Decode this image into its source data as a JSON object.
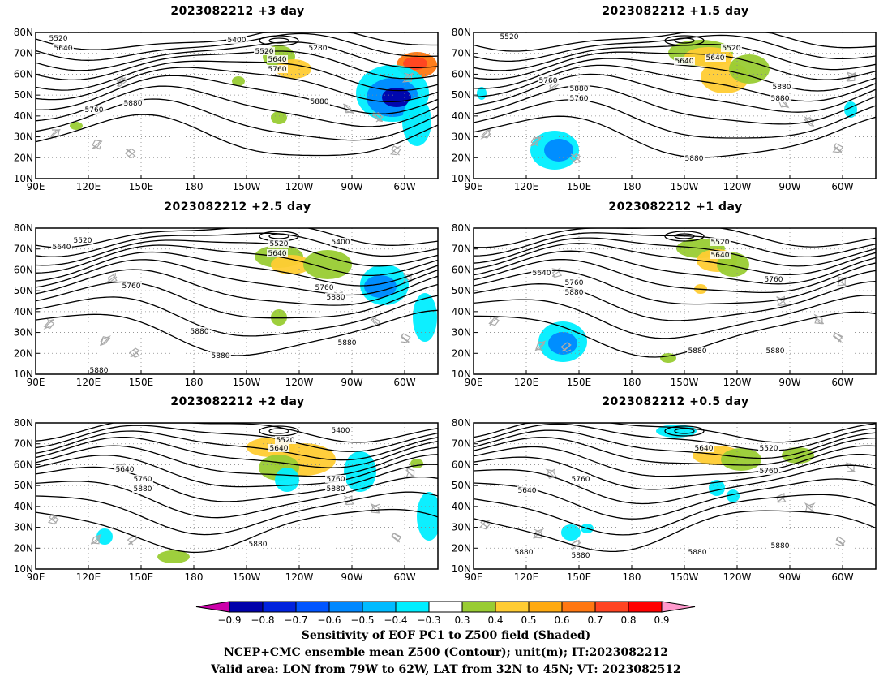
{
  "panels": [
    {
      "title": "2023082212 +3 day",
      "contour_labels": [
        "5520",
        "5640",
        "5400",
        "5280",
        "5520",
        "5640",
        "5760",
        "5760",
        "5880",
        "5880"
      ]
    },
    {
      "title": "2023082212 +1.5 day",
      "contour_labels": [
        "5520",
        "5520",
        "5640",
        "5640",
        "5760",
        "5880",
        "5760",
        "5880",
        "5880",
        "5880"
      ]
    },
    {
      "title": "2023082212 +2.5 day",
      "contour_labels": [
        "5520",
        "5640",
        "5520",
        "5400",
        "5640",
        "5760",
        "5760",
        "5880",
        "5880",
        "5880",
        "5880",
        "5880"
      ]
    },
    {
      "title": "2023082212 +1 day",
      "contour_labels": [
        "5520",
        "5640",
        "5640",
        "5760",
        "5880",
        "5760",
        "5880",
        "5880"
      ]
    },
    {
      "title": "2023082212 +2 day",
      "contour_labels": [
        "5520",
        "5400",
        "5640",
        "5640",
        "5760",
        "5880",
        "5760",
        "5880",
        "5880"
      ]
    },
    {
      "title": "2023082212 +0.5 day",
      "contour_labels": [
        "5640",
        "5520",
        "5760",
        "5760",
        "5640",
        "5880",
        "5880",
        "5880",
        "5880"
      ]
    }
  ],
  "lat_labels": [
    "80N",
    "70N",
    "60N",
    "50N",
    "40N",
    "30N",
    "20N",
    "10N"
  ],
  "lon_labels": [
    "90E",
    "120E",
    "150E",
    "180",
    "150W",
    "120W",
    "90W",
    "60W"
  ],
  "colorbar": {
    "labels": [
      "−0.9",
      "−0.8",
      "−0.7",
      "−0.6",
      "−0.5",
      "−0.4",
      "−0.3",
      "0.3",
      "0.4",
      "0.5",
      "0.6",
      "0.7",
      "0.8",
      "0.9"
    ],
    "colors": [
      "#cc00aa",
      "#0000aa",
      "#0022dd",
      "#0055ff",
      "#0088ff",
      "#00bbff",
      "#00eeff",
      "#ffffff",
      "#99cc33",
      "#ffcc33",
      "#ffaa11",
      "#ff7711",
      "#ff4422",
      "#ff0000",
      "#ff99cc"
    ]
  },
  "caption": {
    "line1": "Sensitivity of EOF PC1 to Z500 field (Shaded)",
    "line2": "NCEP+CMC ensemble mean Z500 (Contour); unit(m); IT:2023082212",
    "line3": "Valid area: LON from 79W to 62W, LAT from 32N to 45N; VT: 2023082512"
  }
}
